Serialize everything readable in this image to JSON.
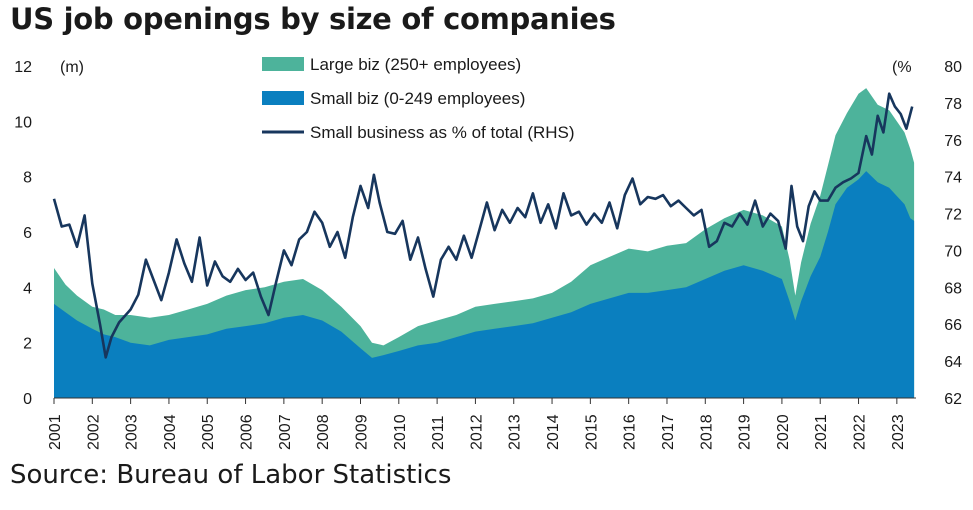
{
  "title": "US job openings by size of companies",
  "source": "Source: Bureau of Labor Statistics",
  "chart_data": {
    "type": "area",
    "x_unit": "year",
    "left_axis": {
      "unit_label": "(m)",
      "range": [
        0,
        12
      ],
      "ticks": [
        "0",
        "2",
        "4",
        "6",
        "8",
        "10",
        "12"
      ]
    },
    "right_axis": {
      "unit_label": "(%",
      "range": [
        62,
        80
      ],
      "ticks": [
        "62",
        "64",
        "66",
        "68",
        "70",
        "72",
        "74",
        "76",
        "78",
        "80"
      ]
    },
    "x_ticks": [
      "2001",
      "2002",
      "2003",
      "2004",
      "2005",
      "2006",
      "2007",
      "2008",
      "2009",
      "2010",
      "2011",
      "2012",
      "2013",
      "2014",
      "2015",
      "2016",
      "2017",
      "2018",
      "2019",
      "2020",
      "2021",
      "2022",
      "2023"
    ],
    "x_range": [
      2001,
      2023.5
    ],
    "legend": [
      "Large biz (250+ employees)",
      "Small biz (0-249 employees)",
      "Small business as % of total (RHS)"
    ],
    "colors": {
      "large": "#4db39b",
      "small": "#0a7fbf",
      "share": "#17365d"
    },
    "series": [
      {
        "name": "Small biz (0-249 employees)",
        "kind": "area",
        "axis": "left",
        "points": [
          [
            2001.0,
            3.4
          ],
          [
            2001.3,
            3.1
          ],
          [
            2001.6,
            2.8
          ],
          [
            2002.0,
            2.5
          ],
          [
            2002.3,
            2.3
          ],
          [
            2002.6,
            2.2
          ],
          [
            2003.0,
            2.0
          ],
          [
            2003.5,
            1.9
          ],
          [
            2004.0,
            2.1
          ],
          [
            2004.5,
            2.2
          ],
          [
            2005.0,
            2.3
          ],
          [
            2005.5,
            2.5
          ],
          [
            2006.0,
            2.6
          ],
          [
            2006.5,
            2.7
          ],
          [
            2007.0,
            2.9
          ],
          [
            2007.5,
            3.0
          ],
          [
            2008.0,
            2.8
          ],
          [
            2008.5,
            2.4
          ],
          [
            2009.0,
            1.8
          ],
          [
            2009.3,
            1.45
          ],
          [
            2009.6,
            1.55
          ],
          [
            2010.0,
            1.7
          ],
          [
            2010.5,
            1.9
          ],
          [
            2011.0,
            2.0
          ],
          [
            2011.5,
            2.2
          ],
          [
            2012.0,
            2.4
          ],
          [
            2012.5,
            2.5
          ],
          [
            2013.0,
            2.6
          ],
          [
            2013.5,
            2.7
          ],
          [
            2014.0,
            2.9
          ],
          [
            2014.5,
            3.1
          ],
          [
            2015.0,
            3.4
          ],
          [
            2015.5,
            3.6
          ],
          [
            2016.0,
            3.8
          ],
          [
            2016.5,
            3.8
          ],
          [
            2017.0,
            3.9
          ],
          [
            2017.5,
            4.0
          ],
          [
            2018.0,
            4.3
          ],
          [
            2018.5,
            4.6
          ],
          [
            2019.0,
            4.8
          ],
          [
            2019.5,
            4.6
          ],
          [
            2020.0,
            4.3
          ],
          [
            2020.2,
            3.5
          ],
          [
            2020.35,
            2.8
          ],
          [
            2020.5,
            3.5
          ],
          [
            2020.75,
            4.4
          ],
          [
            2021.0,
            5.1
          ],
          [
            2021.2,
            6.0
          ],
          [
            2021.4,
            7.0
          ],
          [
            2021.7,
            7.6
          ],
          [
            2022.0,
            7.9
          ],
          [
            2022.2,
            8.2
          ],
          [
            2022.5,
            7.8
          ],
          [
            2022.8,
            7.6
          ],
          [
            2023.0,
            7.3
          ],
          [
            2023.2,
            7.0
          ],
          [
            2023.35,
            6.5
          ],
          [
            2023.45,
            6.4
          ]
        ]
      },
      {
        "name": "Large biz (250+ employees)",
        "kind": "area",
        "axis": "left",
        "stack_total": true,
        "points": [
          [
            2001.0,
            4.7
          ],
          [
            2001.3,
            4.1
          ],
          [
            2001.6,
            3.7
          ],
          [
            2002.0,
            3.3
          ],
          [
            2002.3,
            3.2
          ],
          [
            2002.6,
            3.0
          ],
          [
            2003.0,
            3.0
          ],
          [
            2003.5,
            2.9
          ],
          [
            2004.0,
            3.0
          ],
          [
            2004.5,
            3.2
          ],
          [
            2005.0,
            3.4
          ],
          [
            2005.5,
            3.7
          ],
          [
            2006.0,
            3.9
          ],
          [
            2006.5,
            4.0
          ],
          [
            2007.0,
            4.2
          ],
          [
            2007.5,
            4.3
          ],
          [
            2008.0,
            3.9
          ],
          [
            2008.5,
            3.3
          ],
          [
            2009.0,
            2.6
          ],
          [
            2009.3,
            2.0
          ],
          [
            2009.6,
            1.9
          ],
          [
            2010.0,
            2.2
          ],
          [
            2010.5,
            2.6
          ],
          [
            2011.0,
            2.8
          ],
          [
            2011.5,
            3.0
          ],
          [
            2012.0,
            3.3
          ],
          [
            2012.5,
            3.4
          ],
          [
            2013.0,
            3.5
          ],
          [
            2013.5,
            3.6
          ],
          [
            2014.0,
            3.8
          ],
          [
            2014.5,
            4.2
          ],
          [
            2015.0,
            4.8
          ],
          [
            2015.5,
            5.1
          ],
          [
            2016.0,
            5.4
          ],
          [
            2016.5,
            5.3
          ],
          [
            2017.0,
            5.5
          ],
          [
            2017.5,
            5.6
          ],
          [
            2018.0,
            6.1
          ],
          [
            2018.5,
            6.5
          ],
          [
            2019.0,
            6.8
          ],
          [
            2019.5,
            6.6
          ],
          [
            2020.0,
            6.2
          ],
          [
            2020.2,
            5.0
          ],
          [
            2020.35,
            3.7
          ],
          [
            2020.5,
            4.9
          ],
          [
            2020.75,
            6.3
          ],
          [
            2021.0,
            7.3
          ],
          [
            2021.2,
            8.4
          ],
          [
            2021.4,
            9.5
          ],
          [
            2021.7,
            10.3
          ],
          [
            2022.0,
            11.0
          ],
          [
            2022.2,
            11.2
          ],
          [
            2022.5,
            10.6
          ],
          [
            2022.8,
            10.4
          ],
          [
            2023.0,
            10.0
          ],
          [
            2023.2,
            9.6
          ],
          [
            2023.35,
            9.0
          ],
          [
            2023.45,
            8.5
          ]
        ]
      },
      {
        "name": "Small business as % of total (RHS)",
        "kind": "line",
        "axis": "right",
        "points": [
          [
            2001.0,
            72.8
          ],
          [
            2001.2,
            71.3
          ],
          [
            2001.4,
            71.4
          ],
          [
            2001.6,
            70.2
          ],
          [
            2001.8,
            71.9
          ],
          [
            2002.0,
            68.2
          ],
          [
            2002.2,
            66.0
          ],
          [
            2002.35,
            64.2
          ],
          [
            2002.5,
            65.3
          ],
          [
            2002.7,
            66.1
          ],
          [
            2003.0,
            66.8
          ],
          [
            2003.2,
            67.6
          ],
          [
            2003.4,
            69.5
          ],
          [
            2003.6,
            68.4
          ],
          [
            2003.8,
            67.3
          ],
          [
            2004.0,
            68.8
          ],
          [
            2004.2,
            70.6
          ],
          [
            2004.4,
            69.3
          ],
          [
            2004.6,
            68.3
          ],
          [
            2004.8,
            70.7
          ],
          [
            2005.0,
            68.1
          ],
          [
            2005.2,
            69.4
          ],
          [
            2005.4,
            68.6
          ],
          [
            2005.6,
            68.3
          ],
          [
            2005.8,
            69.0
          ],
          [
            2006.0,
            68.4
          ],
          [
            2006.2,
            68.8
          ],
          [
            2006.4,
            67.5
          ],
          [
            2006.6,
            66.5
          ],
          [
            2006.8,
            68.3
          ],
          [
            2007.0,
            70.0
          ],
          [
            2007.2,
            69.2
          ],
          [
            2007.4,
            70.6
          ],
          [
            2007.6,
            71.0
          ],
          [
            2007.8,
            72.1
          ],
          [
            2008.0,
            71.5
          ],
          [
            2008.2,
            70.2
          ],
          [
            2008.4,
            71.0
          ],
          [
            2008.6,
            69.6
          ],
          [
            2008.8,
            71.8
          ],
          [
            2009.0,
            73.5
          ],
          [
            2009.2,
            72.3
          ],
          [
            2009.35,
            74.1
          ],
          [
            2009.5,
            72.6
          ],
          [
            2009.7,
            71.0
          ],
          [
            2009.9,
            70.9
          ],
          [
            2010.1,
            71.6
          ],
          [
            2010.3,
            69.5
          ],
          [
            2010.5,
            70.7
          ],
          [
            2010.7,
            69.0
          ],
          [
            2010.9,
            67.5
          ],
          [
            2011.1,
            69.5
          ],
          [
            2011.3,
            70.2
          ],
          [
            2011.5,
            69.5
          ],
          [
            2011.7,
            70.8
          ],
          [
            2011.9,
            69.6
          ],
          [
            2012.1,
            71.1
          ],
          [
            2012.3,
            72.6
          ],
          [
            2012.5,
            71.1
          ],
          [
            2012.7,
            72.2
          ],
          [
            2012.9,
            71.5
          ],
          [
            2013.1,
            72.3
          ],
          [
            2013.3,
            71.8
          ],
          [
            2013.5,
            73.1
          ],
          [
            2013.7,
            71.5
          ],
          [
            2013.9,
            72.5
          ],
          [
            2014.1,
            71.2
          ],
          [
            2014.3,
            73.1
          ],
          [
            2014.5,
            71.9
          ],
          [
            2014.7,
            72.1
          ],
          [
            2014.9,
            71.4
          ],
          [
            2015.1,
            72.0
          ],
          [
            2015.3,
            71.5
          ],
          [
            2015.5,
            72.6
          ],
          [
            2015.7,
            71.2
          ],
          [
            2015.9,
            73.0
          ],
          [
            2016.1,
            73.9
          ],
          [
            2016.3,
            72.5
          ],
          [
            2016.5,
            72.9
          ],
          [
            2016.7,
            72.8
          ],
          [
            2016.9,
            73.0
          ],
          [
            2017.1,
            72.4
          ],
          [
            2017.3,
            72.7
          ],
          [
            2017.5,
            72.3
          ],
          [
            2017.7,
            71.9
          ],
          [
            2017.9,
            72.2
          ],
          [
            2018.1,
            70.2
          ],
          [
            2018.3,
            70.5
          ],
          [
            2018.5,
            71.5
          ],
          [
            2018.7,
            71.3
          ],
          [
            2018.9,
            72.0
          ],
          [
            2019.1,
            71.4
          ],
          [
            2019.3,
            72.7
          ],
          [
            2019.5,
            71.3
          ],
          [
            2019.7,
            72.0
          ],
          [
            2019.9,
            71.6
          ],
          [
            2020.1,
            70.1
          ],
          [
            2020.25,
            73.5
          ],
          [
            2020.4,
            71.3
          ],
          [
            2020.55,
            70.5
          ],
          [
            2020.7,
            72.4
          ],
          [
            2020.85,
            73.2
          ],
          [
            2021.0,
            72.7
          ],
          [
            2021.2,
            72.7
          ],
          [
            2021.4,
            73.4
          ],
          [
            2021.6,
            73.7
          ],
          [
            2021.8,
            73.9
          ],
          [
            2022.0,
            74.2
          ],
          [
            2022.2,
            76.2
          ],
          [
            2022.35,
            75.2
          ],
          [
            2022.5,
            77.3
          ],
          [
            2022.65,
            76.4
          ],
          [
            2022.8,
            78.5
          ],
          [
            2022.95,
            77.8
          ],
          [
            2023.1,
            77.4
          ],
          [
            2023.25,
            76.6
          ],
          [
            2023.4,
            77.8
          ]
        ]
      }
    ]
  }
}
